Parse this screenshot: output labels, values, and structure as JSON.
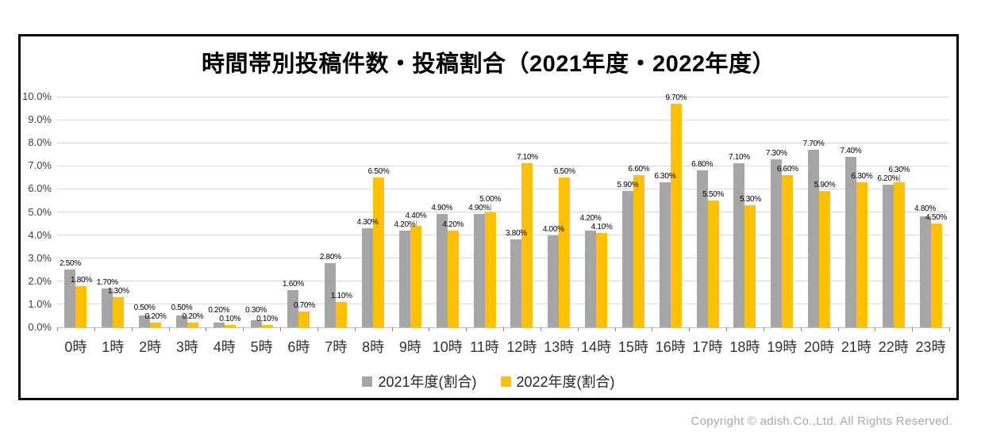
{
  "title": "時間帯別投稿件数・投稿割合（2021年度・2022年度）",
  "copyright": "Copyright © adish.Co.,Ltd.  All Rights Reserved.",
  "colors": {
    "series_2021": "#A6A6A6",
    "series_2022": "#FFC000",
    "gridline": "#D9D9D9",
    "axis_line": "#BFBFBF",
    "frame_border": "#000000",
    "axis_text": "#404040",
    "value_label_text": "#000000",
    "copyright_text": "#A9A9A9"
  },
  "chart_data": {
    "type": "bar",
    "title": "時間帯別投稿件数・投稿割合（2021年度・2022年度）",
    "categories": [
      "0時",
      "1時",
      "2時",
      "3時",
      "4時",
      "5時",
      "6時",
      "7時",
      "8時",
      "9時",
      "10時",
      "11時",
      "12時",
      "13時",
      "14時",
      "15時",
      "16時",
      "17時",
      "18時",
      "19時",
      "20時",
      "21時",
      "22時",
      "23時"
    ],
    "series": [
      {
        "name": "2021年度(割合)",
        "color": "#A6A6A6",
        "values": [
          2.5,
          1.7,
          0.5,
          0.5,
          0.2,
          0.3,
          1.6,
          2.8,
          4.3,
          4.2,
          4.9,
          4.9,
          3.8,
          4.0,
          4.2,
          5.9,
          6.3,
          6.8,
          7.1,
          7.3,
          7.7,
          7.4,
          6.2,
          4.8
        ]
      },
      {
        "name": "2022年度(割合)",
        "color": "#FFC000",
        "values": [
          1.8,
          1.3,
          0.2,
          0.2,
          0.1,
          0.1,
          0.7,
          1.1,
          6.5,
          4.4,
          4.2,
          5.0,
          7.1,
          6.5,
          4.1,
          6.6,
          9.7,
          5.5,
          5.3,
          6.6,
          5.9,
          6.3,
          6.3,
          4.5
        ]
      }
    ],
    "xlabel": "",
    "ylabel": "",
    "ylim": [
      0,
      10
    ],
    "ytick_step": 1.0,
    "ytick_labels": [
      "0.0%",
      "1.0%",
      "2.0%",
      "3.0%",
      "4.0%",
      "5.0%",
      "6.0%",
      "7.0%",
      "8.0%",
      "9.0%",
      "10.0%"
    ],
    "value_label_suffix": "%",
    "grid": "horizontal",
    "legend_position": "bottom"
  }
}
